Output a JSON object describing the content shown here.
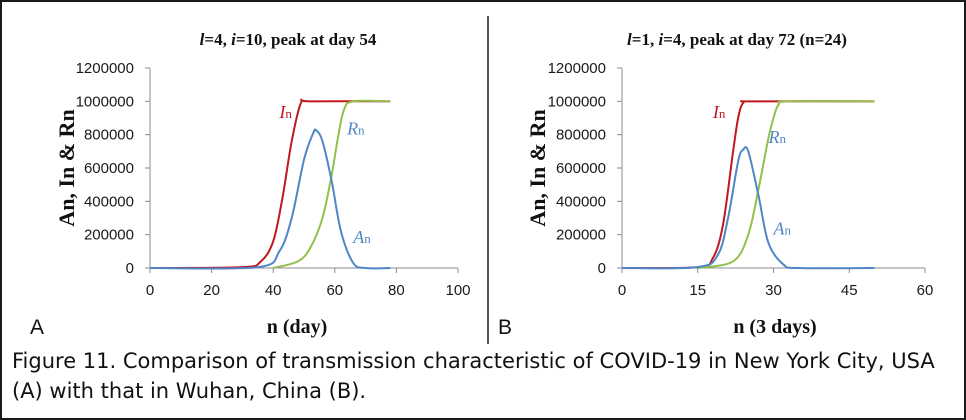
{
  "colors": {
    "I": "#c0181f",
    "R": "#93bf4c",
    "A": "#4f86c6"
  },
  "chart_data": [
    {
      "type": "line",
      "panel_letter": "A",
      "title": "l=4, i=10, peak at day 54",
      "title_parts": [
        {
          "t": "l",
          "italic": true
        },
        {
          "t": "=4, ",
          "italic": false
        },
        {
          "t": "i",
          "italic": true
        },
        {
          "t": "=10, peak at day 54",
          "italic": false
        }
      ],
      "xlabel": "n (day)",
      "ylabel": "An, In & Rn",
      "xlim": [
        0,
        100
      ],
      "ylim": [
        0,
        1200000
      ],
      "xticks": [
        "0",
        "20",
        "40",
        "60",
        "80",
        "100"
      ],
      "yticks": [
        "0",
        "200000",
        "400000",
        "600000",
        "800000",
        "1000000",
        "1200000"
      ],
      "series": [
        {
          "name": "In",
          "color": "#c0181f",
          "x": [
            0,
            30,
            36,
            40,
            43,
            46,
            49,
            52,
            78
          ],
          "y": [
            0,
            5000,
            40000,
            160000,
            420000,
            760000,
            990000,
            1000000,
            1000000
          ]
        },
        {
          "name": "Rn",
          "color": "#93bf4c",
          "x": [
            40,
            48,
            52,
            56,
            59,
            61,
            63,
            66,
            78
          ],
          "y": [
            0,
            40000,
            120000,
            300000,
            560000,
            780000,
            950000,
            1000000,
            1000000
          ]
        },
        {
          "name": "An",
          "color": "#4f86c6",
          "x": [
            0,
            35,
            42,
            46,
            50,
            53,
            54,
            56,
            59,
            62,
            66,
            70,
            78
          ],
          "y": [
            0,
            5000,
            100000,
            300000,
            650000,
            810000,
            825000,
            760000,
            520000,
            220000,
            30000,
            0,
            0
          ]
        }
      ],
      "annotations": [
        {
          "base": "I",
          "sub": "n",
          "color": "#c0181f",
          "x": 42,
          "y": 900000
        },
        {
          "base": "R",
          "sub": "n",
          "color": "#4f86c6",
          "x": 64,
          "y": 800000
        },
        {
          "base": "A",
          "sub": "n",
          "color": "#4f86c6",
          "x": 66,
          "y": 150000
        }
      ]
    },
    {
      "type": "line",
      "panel_letter": "B",
      "title": "l=1, i=4, peak at day 72 (n=24)",
      "title_parts": [
        {
          "t": "l",
          "italic": true
        },
        {
          "t": "=1, ",
          "italic": false
        },
        {
          "t": "i",
          "italic": true
        },
        {
          "t": "=4, peak at day 72 (n=24)",
          "italic": false
        }
      ],
      "xlabel": "n (3 days)",
      "ylabel": "An, In & Rn",
      "xlim": [
        0,
        60
      ],
      "ylim": [
        0,
        1200000
      ],
      "xticks": [
        "0",
        "15",
        "30",
        "45",
        "60"
      ],
      "yticks": [
        "0",
        "200000",
        "400000",
        "600000",
        "800000",
        "1000000",
        "1200000"
      ],
      "series": [
        {
          "name": "In",
          "color": "#c0181f",
          "x": [
            0,
            15,
            18,
            20,
            22,
            23,
            24,
            26,
            50
          ],
          "y": [
            0,
            5000,
            60000,
            260000,
            700000,
            900000,
            990000,
            1000000,
            1000000
          ]
        },
        {
          "name": "Rn",
          "color": "#93bf4c",
          "x": [
            15,
            22,
            25,
            27,
            29,
            30,
            31,
            33,
            50
          ],
          "y": [
            0,
            40000,
            200000,
            470000,
            780000,
            900000,
            980000,
            1000000,
            1000000
          ]
        },
        {
          "name": "An",
          "color": "#4f86c6",
          "x": [
            0,
            15,
            19,
            21,
            23,
            24,
            25,
            27,
            29,
            32,
            35,
            50
          ],
          "y": [
            0,
            5000,
            80000,
            300000,
            640000,
            710000,
            700000,
            440000,
            150000,
            20000,
            0,
            0
          ]
        }
      ],
      "annotations": [
        {
          "base": "I",
          "sub": "n",
          "color": "#c0181f",
          "x": 18,
          "y": 900000
        },
        {
          "base": "R",
          "sub": "n",
          "color": "#4f86c6",
          "x": 29,
          "y": 750000
        },
        {
          "base": "A",
          "sub": "n",
          "color": "#4f86c6",
          "x": 30,
          "y": 200000
        }
      ]
    }
  ],
  "caption": "Figure 11. Comparison of transmission characteristic of COVID-19 in New York City, USA (A) with that in Wuhan, China (B)."
}
